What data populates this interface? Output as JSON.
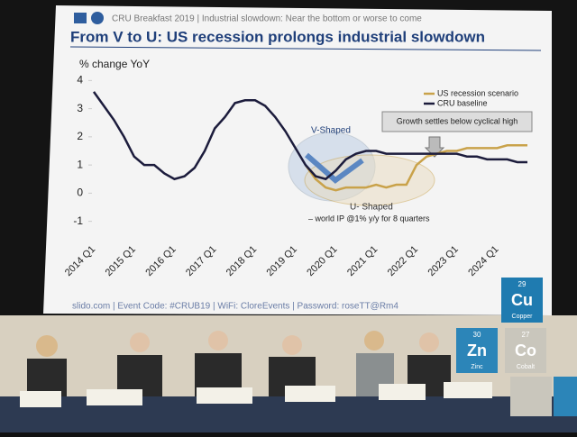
{
  "header": "CRU Breakfast 2019  |  Industrial slowdown: Near the bottom or worse to come",
  "chart_data": {
    "type": "line",
    "title": "From V to U: US recession prolongs industrial slowdown",
    "y_label": "% change YoY",
    "categories": [
      "2014 Q1",
      null,
      null,
      null,
      "2015 Q1",
      null,
      null,
      null,
      "2016 Q1",
      null,
      null,
      null,
      "2017 Q1",
      null,
      null,
      null,
      "2018 Q1",
      null,
      null,
      null,
      "2019 Q1",
      null,
      null,
      null,
      "2020 Q1",
      null,
      null,
      null,
      "2021 Q1",
      null,
      null,
      null,
      "2022 Q1",
      null,
      null,
      null,
      "2023 Q1",
      null,
      null,
      null,
      "2024 Q1",
      null,
      null,
      null
    ],
    "series": [
      {
        "name": "US recession scenario",
        "color": "#c9a24a",
        "values": [
          null,
          null,
          null,
          null,
          null,
          null,
          null,
          null,
          null,
          null,
          null,
          null,
          null,
          null,
          null,
          null,
          null,
          null,
          null,
          null,
          null,
          1.0,
          0.5,
          0.2,
          0.1,
          0.2,
          0.2,
          0.2,
          0.3,
          0.2,
          0.3,
          0.3,
          1.0,
          1.3,
          1.4,
          1.5,
          1.5,
          1.6,
          1.6,
          1.6,
          1.6,
          1.7,
          1.7,
          1.7
        ]
      },
      {
        "name": "CRU baseline",
        "color": "#1c1c3c",
        "values": [
          3.6,
          3.1,
          2.6,
          2.0,
          1.3,
          1.0,
          1.0,
          0.7,
          0.5,
          0.6,
          0.9,
          1.5,
          2.3,
          2.7,
          3.2,
          3.3,
          3.3,
          3.1,
          2.7,
          2.2,
          1.6,
          1.0,
          0.6,
          0.5,
          0.8,
          1.2,
          1.4,
          1.5,
          1.5,
          1.4,
          1.4,
          1.4,
          1.4,
          1.4,
          1.4,
          1.4,
          1.4,
          1.3,
          1.3,
          1.2,
          1.2,
          1.2,
          1.1,
          1.1
        ]
      }
    ],
    "ylim": [
      -1.3,
      4.3
    ],
    "yticks": [
      -1,
      0,
      1,
      2,
      3,
      4
    ],
    "legend": "upper-right",
    "annotations": [
      "Growth settles below cyclical high",
      "V-Shaped",
      "U- Shaped",
      "– world IP @1% y/y for 8 quarters"
    ]
  },
  "footer": "slido.com | Event Code: #CRUB19 | WiFi: CloreEvents | Password: roseTT@Rm4",
  "elements": [
    {
      "number": "29",
      "symbol": "Cu",
      "name": "Copper"
    },
    {
      "number": "30",
      "symbol": "Zn",
      "name": "Zinc"
    },
    {
      "number": "27",
      "symbol": "Co",
      "name": "Cobalt"
    }
  ]
}
